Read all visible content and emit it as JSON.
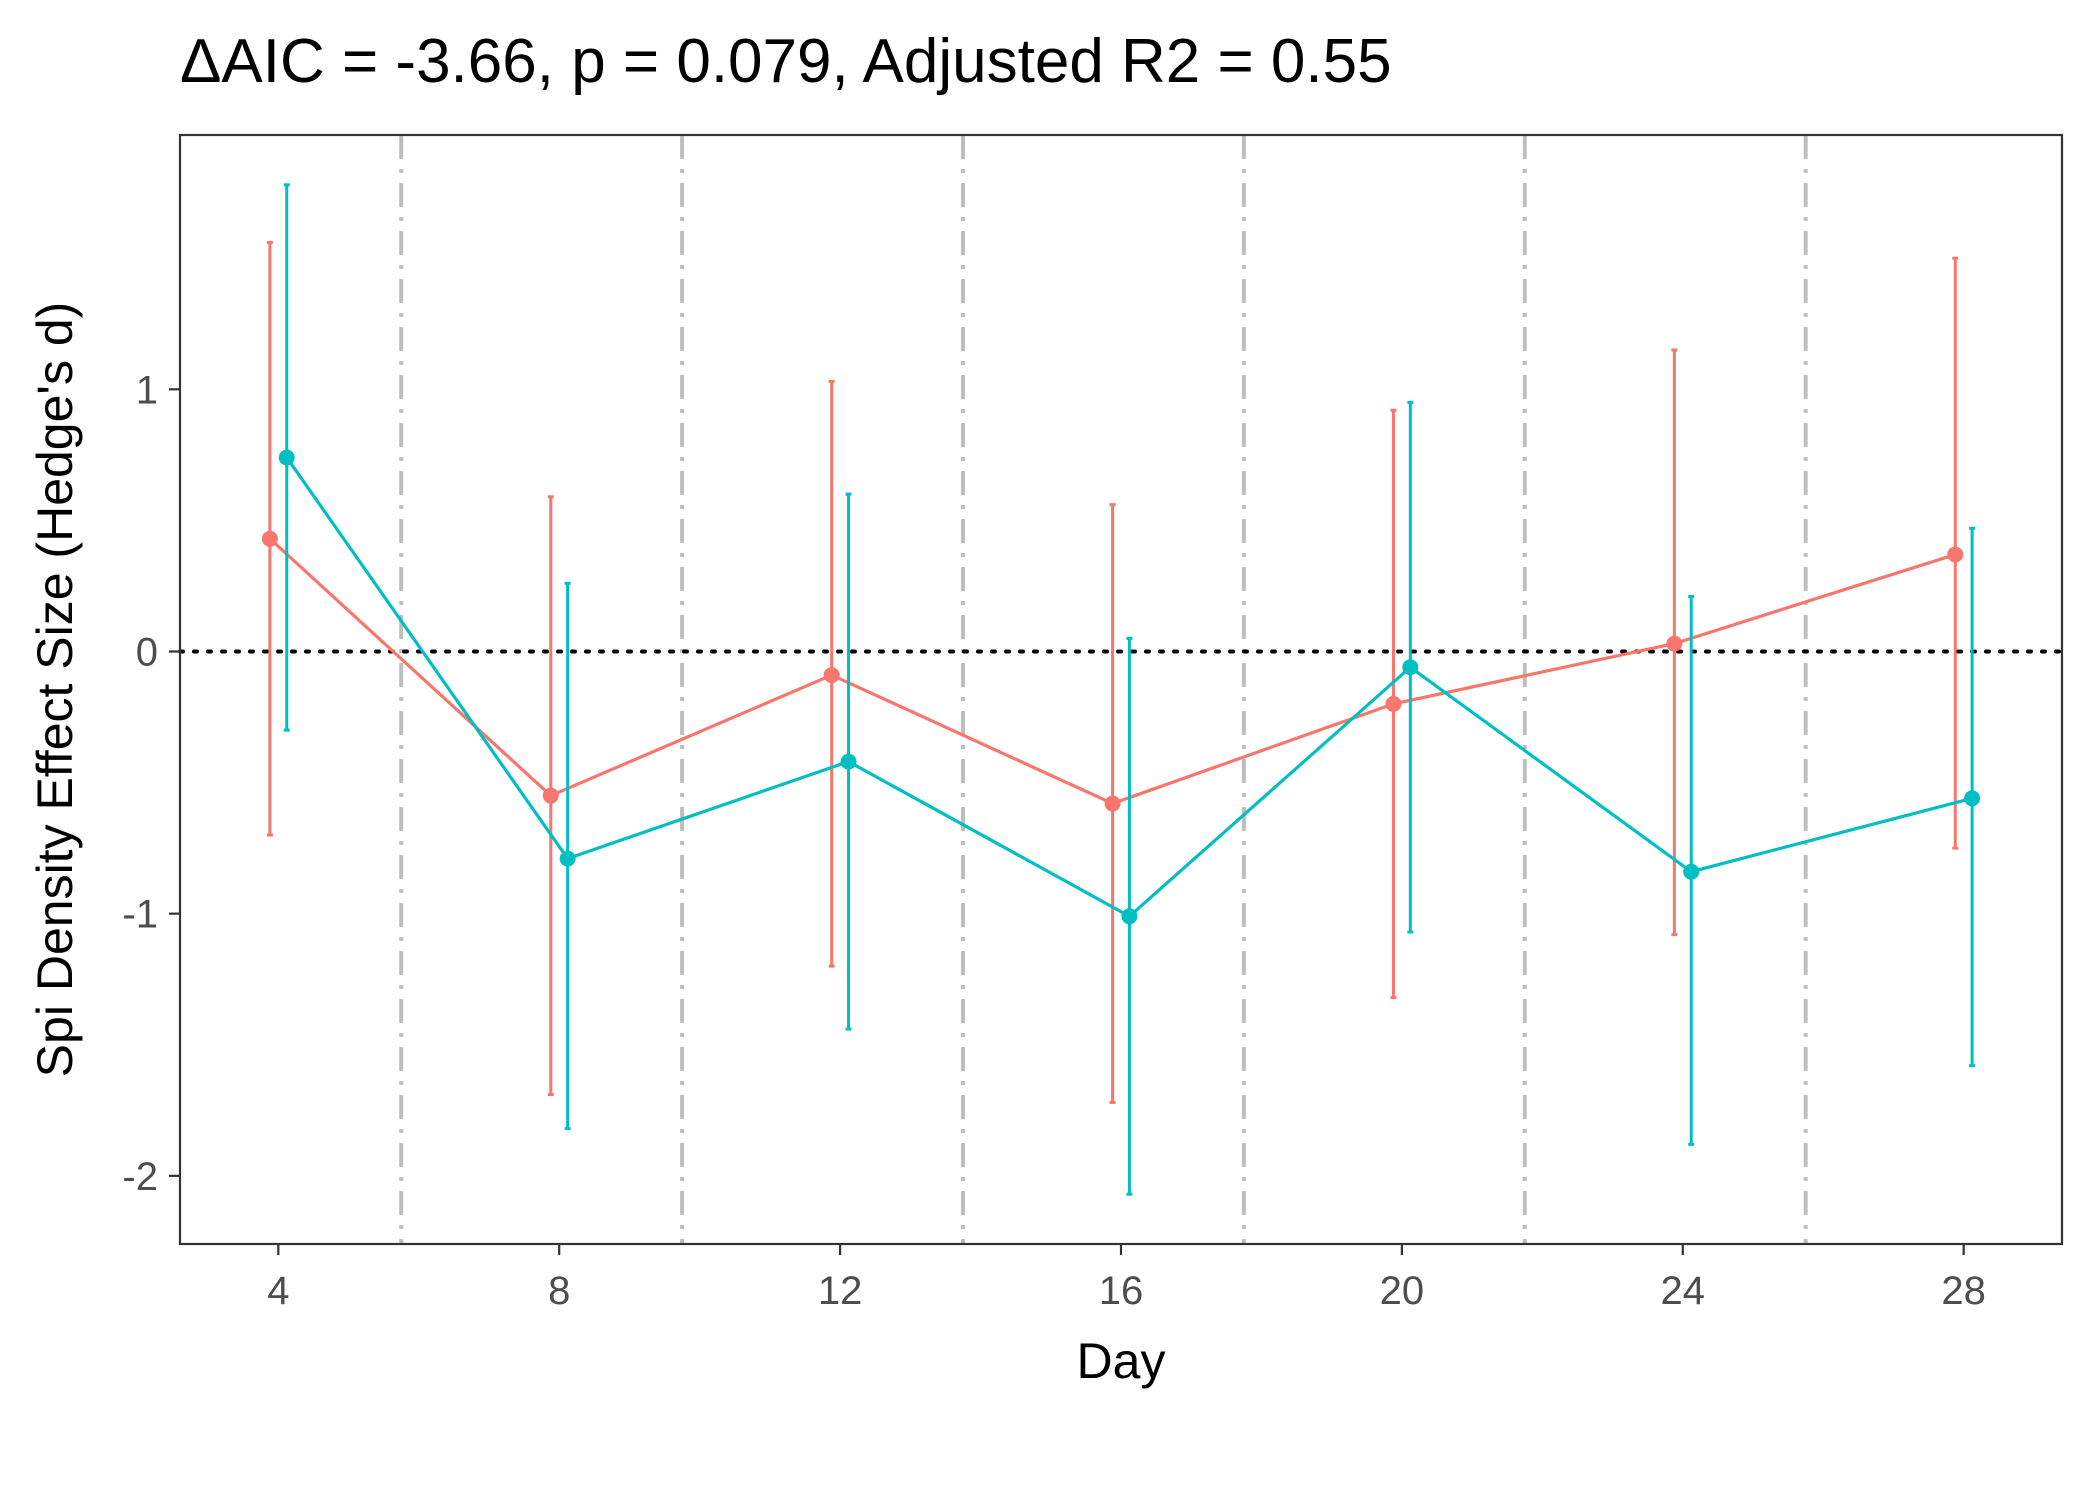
{
  "chart_data": {
    "type": "line",
    "title": "ΔAIC = -3.66, p = 0.079, Adjusted R2 = 0.55",
    "xlabel": "Day",
    "ylabel": "Spi Density Effect Size (Hedge's d)",
    "x_ticks": [
      4,
      8,
      12,
      16,
      20,
      24,
      28
    ],
    "x_tick_labels": [
      "4",
      "8",
      "12",
      "16",
      "20",
      "24",
      "28"
    ],
    "y_ticks": [
      -2,
      -1,
      0,
      1
    ],
    "y_tick_labels": [
      "-2",
      "-1",
      "0",
      "1"
    ],
    "xlim": [
      2.6,
      29.4
    ],
    "ylim": [
      -2.26,
      1.97
    ],
    "grid": false,
    "legend": "none",
    "reference_hline": {
      "y": 0,
      "style": "dotted",
      "color": "#000000"
    },
    "vlines": {
      "x": [
        5.75,
        9.75,
        13.75,
        17.75,
        21.75,
        25.75
      ],
      "style": "dashdot",
      "color": "#bebebe"
    },
    "series": [
      {
        "color": "#F8766D",
        "x": [
          3.88,
          7.88,
          11.88,
          15.88,
          19.88,
          23.88,
          27.88
        ],
        "values": [
          0.43,
          -0.55,
          -0.09,
          -0.58,
          -0.2,
          0.03,
          0.37
        ],
        "lower": [
          -0.7,
          -1.69,
          -1.2,
          -1.72,
          -1.32,
          -1.08,
          -0.75
        ],
        "upper": [
          1.56,
          0.59,
          1.03,
          0.56,
          0.92,
          1.15,
          1.5
        ]
      },
      {
        "color": "#00BFC4",
        "x": [
          4.12,
          8.12,
          12.12,
          16.12,
          20.12,
          24.12,
          28.12
        ],
        "values": [
          0.74,
          -0.79,
          -0.42,
          -1.01,
          -0.06,
          -0.84,
          -0.56
        ],
        "lower": [
          -0.3,
          -1.82,
          -1.44,
          -2.07,
          -1.07,
          -1.88,
          -1.58
        ],
        "upper": [
          1.78,
          0.26,
          0.6,
          0.05,
          0.95,
          0.21,
          0.47
        ]
      }
    ]
  }
}
